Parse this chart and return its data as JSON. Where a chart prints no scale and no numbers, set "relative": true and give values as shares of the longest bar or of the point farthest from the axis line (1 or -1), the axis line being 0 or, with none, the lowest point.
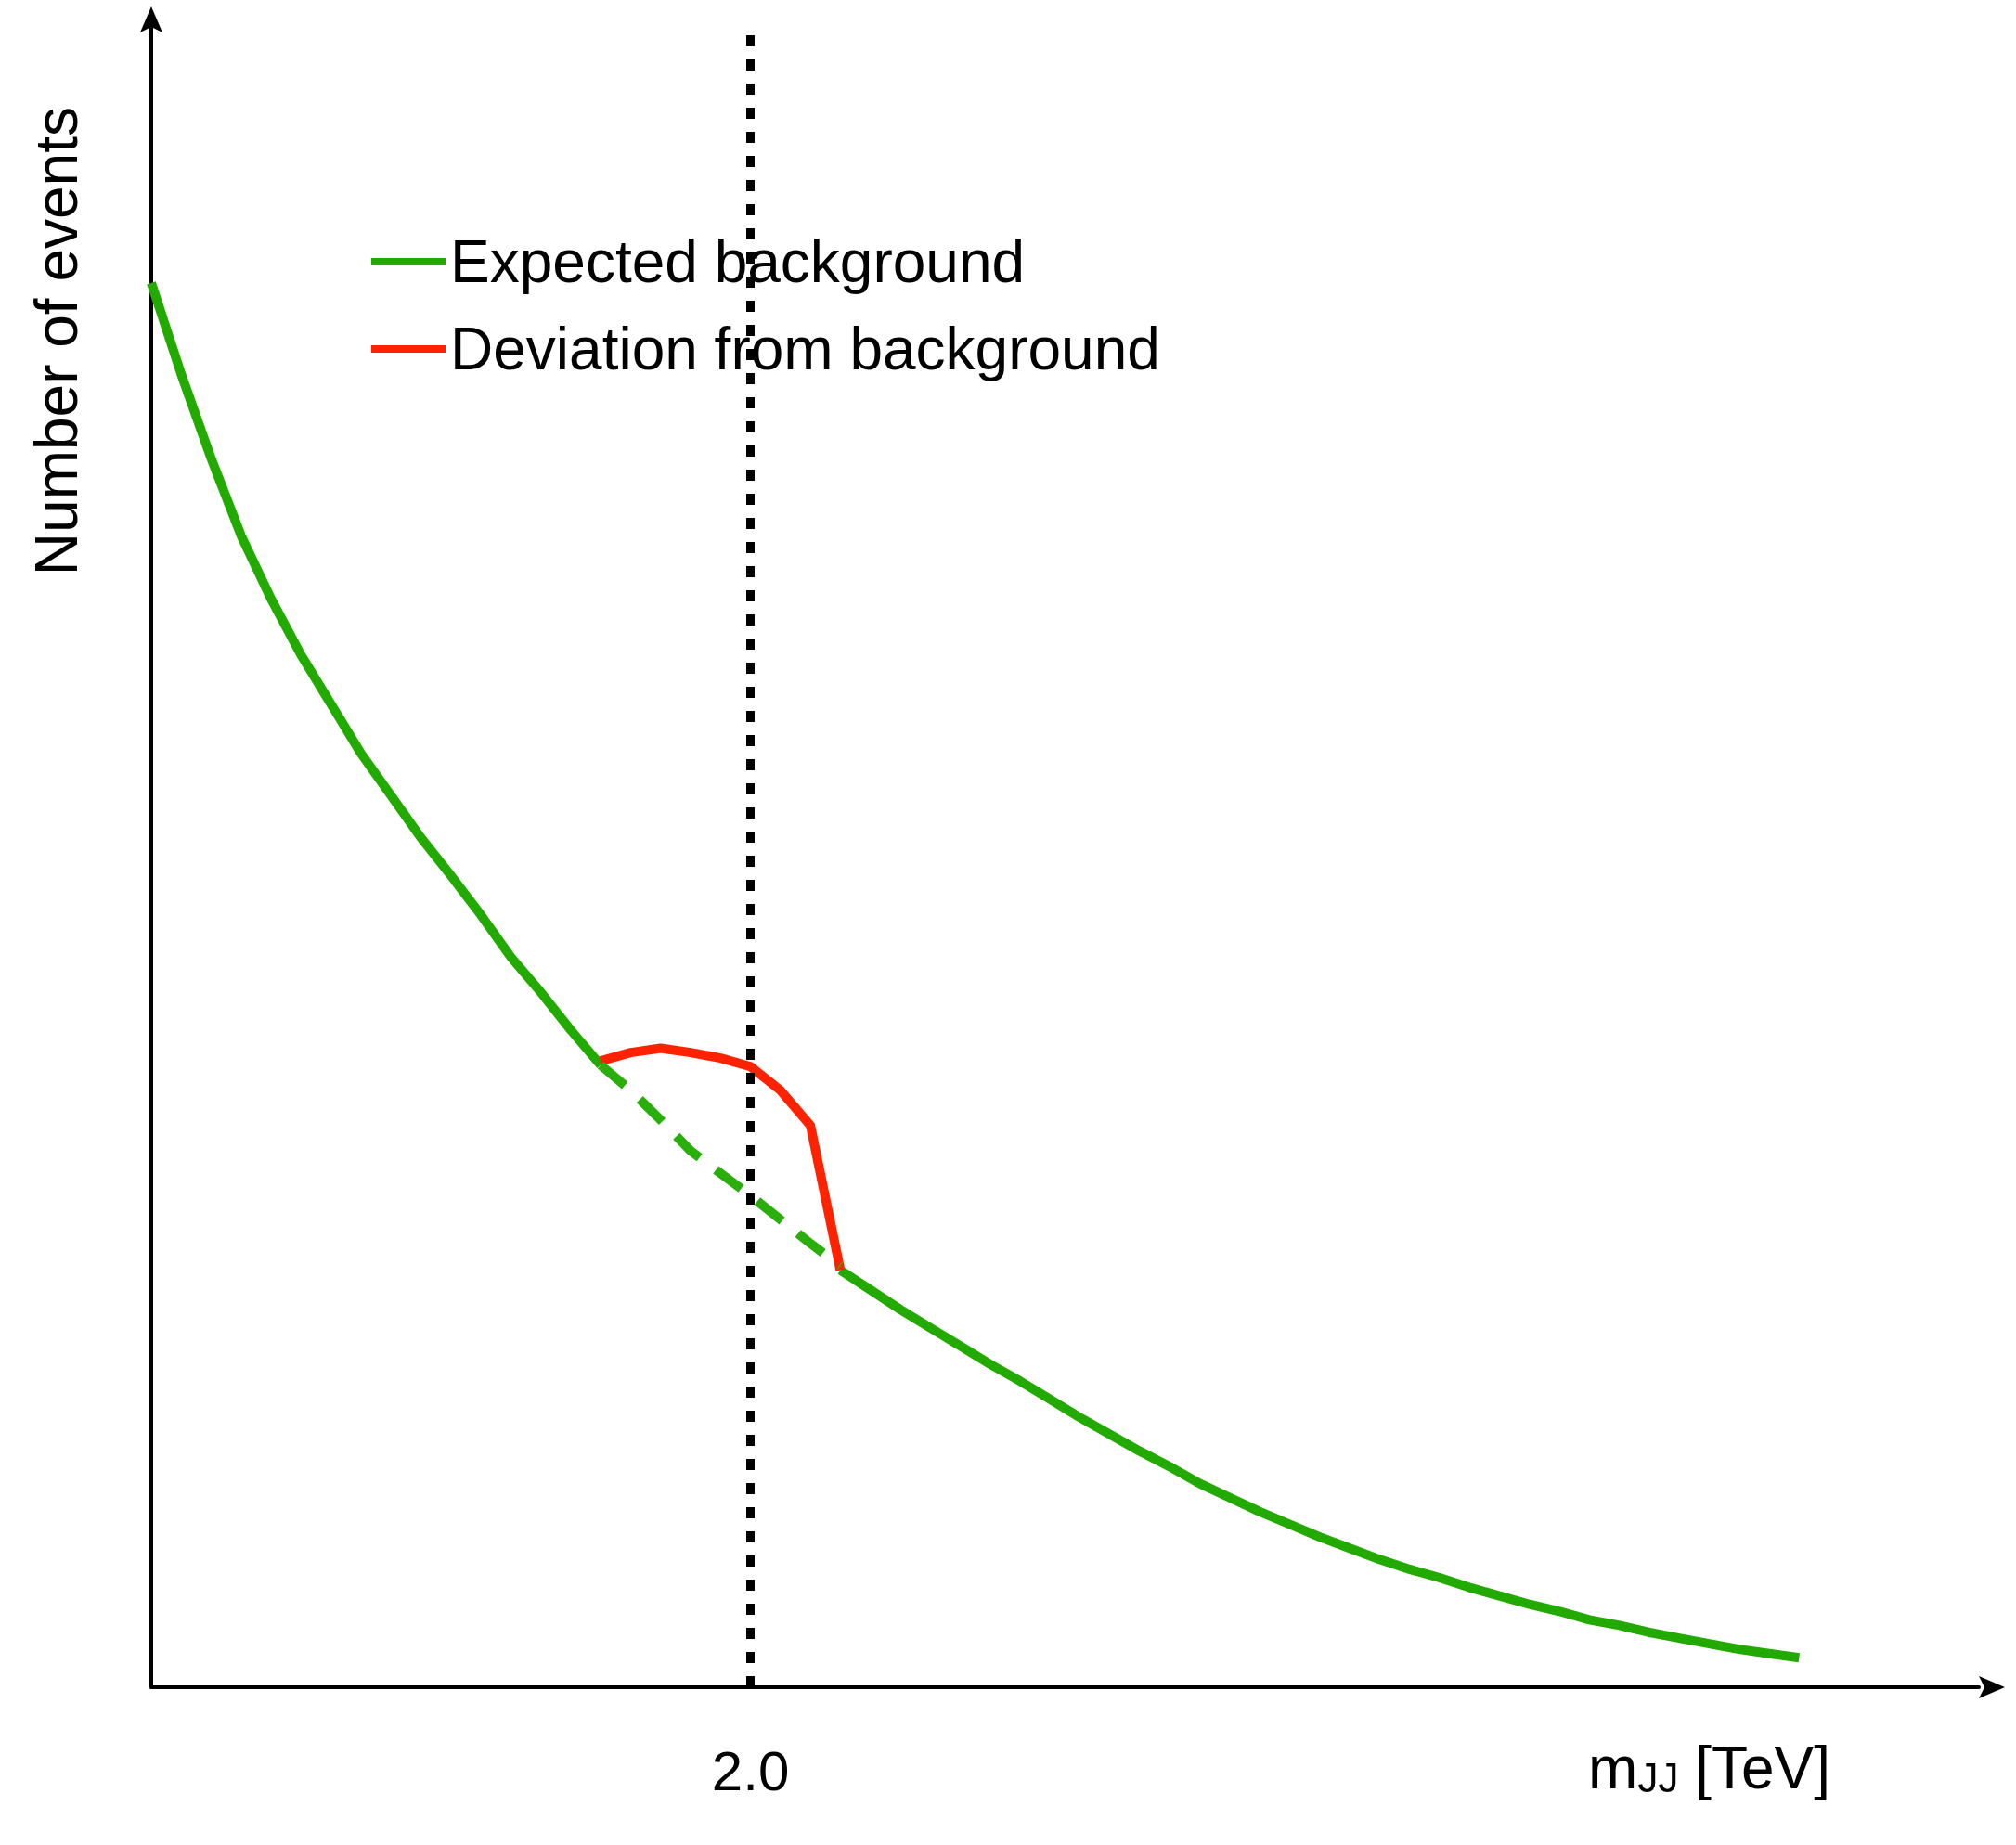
{
  "chart_data": {
    "type": "line",
    "relative": true,
    "xlabel": "m$_{JJ}$ [TeV]",
    "ylabel": "Number of events",
    "categories": [
      null,
      null,
      null,
      null,
      null,
      null,
      null,
      null,
      null,
      null,
      null,
      null,
      null,
      null,
      null,
      null,
      null,
      null,
      null,
      null,
      null,
      null,
      null,
      null,
      null,
      null,
      null,
      null,
      null,
      null,
      null,
      null,
      null,
      null,
      null,
      null,
      null,
      null,
      null,
      null,
      null,
      null,
      null,
      null,
      null,
      null,
      null,
      null,
      null,
      null,
      null,
      null,
      null,
      null,
      null,
      null,
      null,
      null,
      null,
      null,
      null,
      null
    ],
    "marker": "none",
    "grid": false,
    "legend": "top left",
    "series": [
      {
        "name": "Expected background",
        "color": "#22aa00",
        "line_style": "solid",
        "values": [
          1.0,
          0.935,
          0.875,
          0.82,
          0.775,
          0.735,
          0.7,
          0.665,
          0.635,
          0.605,
          0.578,
          0.55,
          0.52,
          0.495,
          0.468,
          0.443,
          null,
          null,
          null,
          null,
          null,
          null,
          null,
          0.297,
          0.283,
          0.269,
          0.256,
          0.243,
          0.23,
          0.218,
          0.205,
          0.192,
          0.18,
          0.168,
          0.157,
          0.145,
          0.135,
          0.125,
          0.116,
          0.107,
          0.099,
          0.091,
          0.084,
          0.078,
          0.071,
          0.065,
          0.059,
          0.054,
          0.048,
          0.044,
          0.039,
          0.035,
          0.031,
          0.027,
          0.024,
          0.021,
          null,
          null,
          null,
          null,
          null,
          null
        ]
      },
      {
        "name": "Deviation from background",
        "color": "#ff2200",
        "line_style": "solid",
        "values": [
          null,
          null,
          null,
          null,
          null,
          null,
          null,
          null,
          null,
          null,
          null,
          null,
          null,
          null,
          null,
          0.446,
          0.452,
          0.455,
          0.452,
          0.448,
          0.442,
          0.425,
          0.4,
          0.297,
          null,
          null,
          null,
          null,
          null,
          null,
          null,
          null,
          null,
          null,
          null,
          null,
          null,
          null,
          null,
          null,
          null,
          null,
          null,
          null,
          null,
          null,
          null,
          null,
          null,
          null,
          null,
          null,
          null,
          null,
          null,
          null,
          null,
          null,
          null,
          null,
          null,
          null
        ]
      },
      {
        "color": "#2aae0c",
        "line_style": "dashed",
        "values": [
          null,
          null,
          null,
          null,
          null,
          null,
          null,
          null,
          null,
          null,
          null,
          null,
          null,
          null,
          null,
          0.443,
          0.425,
          0.404,
          0.382,
          0.366,
          0.35,
          0.333,
          0.316,
          0.3,
          null,
          null,
          null,
          null,
          null,
          null,
          null,
          null,
          null,
          null,
          null,
          null,
          null,
          null,
          null,
          null,
          null,
          null,
          null,
          null,
          null,
          null,
          null,
          null,
          null,
          null,
          null,
          null,
          null,
          null,
          null,
          null,
          null,
          null,
          null,
          null,
          null,
          null
        ]
      }
    ],
    "annotations": [
      "2.0"
    ]
  }
}
